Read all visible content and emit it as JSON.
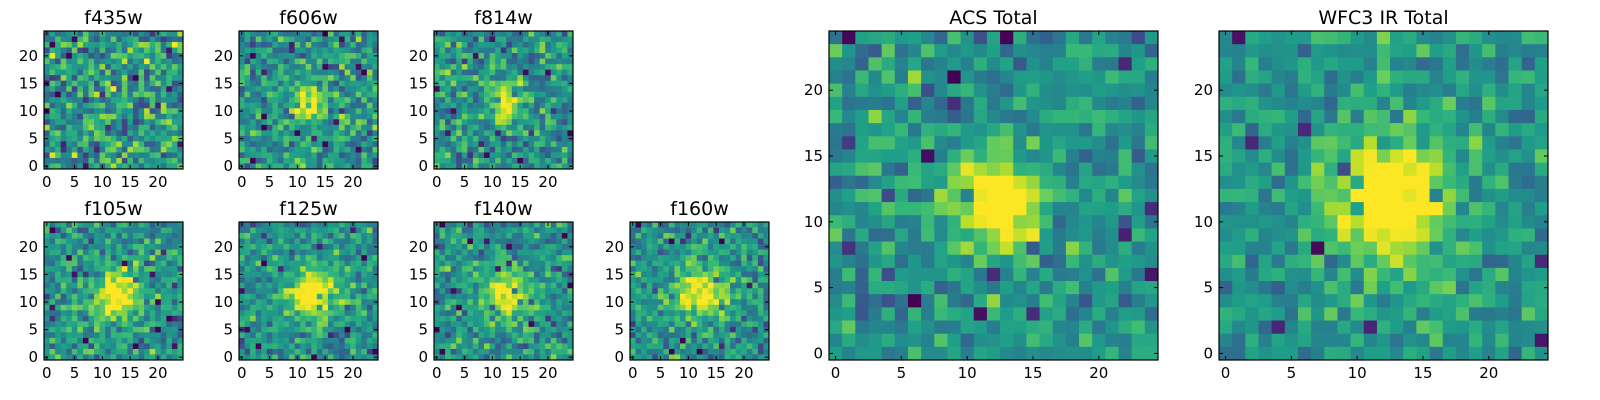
{
  "chart_data": [
    {
      "type": "heatmap",
      "title": "f435w",
      "grid_size": 25,
      "seed": 11,
      "peak": 0.05,
      "sigma": 3.0,
      "noise": 0.55,
      "xlim": [
        0,
        24
      ],
      "ylim": [
        0,
        24
      ],
      "xticks": [
        0,
        5,
        10,
        15,
        20
      ],
      "yticks": [
        0,
        5,
        10,
        15,
        20
      ],
      "colormap": "viridis",
      "grid": false
    },
    {
      "type": "heatmap",
      "title": "f606w",
      "grid_size": 25,
      "seed": 23,
      "peak": 0.55,
      "sigma": 2.2,
      "noise": 0.42,
      "xlim": [
        0,
        24
      ],
      "ylim": [
        0,
        24
      ],
      "xticks": [
        0,
        5,
        10,
        15,
        20
      ],
      "yticks": [
        0,
        5,
        10,
        15,
        20
      ],
      "colormap": "viridis",
      "grid": false
    },
    {
      "type": "heatmap",
      "title": "f814w",
      "grid_size": 25,
      "seed": 37,
      "peak": 0.5,
      "sigma": 2.2,
      "noise": 0.42,
      "xlim": [
        0,
        24
      ],
      "ylim": [
        0,
        24
      ],
      "xticks": [
        0,
        5,
        10,
        15,
        20
      ],
      "yticks": [
        0,
        5,
        10,
        15,
        20
      ],
      "colormap": "viridis",
      "grid": false
    },
    {
      "type": "heatmap",
      "title": "f105w",
      "grid_size": 25,
      "seed": 41,
      "peak": 0.55,
      "sigma": 3.0,
      "noise": 0.38,
      "xlim": [
        0,
        24
      ],
      "ylim": [
        0,
        24
      ],
      "xticks": [
        0,
        5,
        10,
        15,
        20
      ],
      "yticks": [
        0,
        5,
        10,
        15,
        20
      ],
      "colormap": "viridis",
      "grid": false
    },
    {
      "type": "heatmap",
      "title": "f125w",
      "grid_size": 25,
      "seed": 53,
      "peak": 0.6,
      "sigma": 3.0,
      "noise": 0.36,
      "xlim": [
        0,
        24
      ],
      "ylim": [
        0,
        24
      ],
      "xticks": [
        0,
        5,
        10,
        15,
        20
      ],
      "yticks": [
        0,
        5,
        10,
        15,
        20
      ],
      "colormap": "viridis",
      "grid": false
    },
    {
      "type": "heatmap",
      "title": "f140w",
      "grid_size": 25,
      "seed": 67,
      "peak": 0.5,
      "sigma": 3.2,
      "noise": 0.38,
      "xlim": [
        0,
        24
      ],
      "ylim": [
        0,
        24
      ],
      "xticks": [
        0,
        5,
        10,
        15,
        20
      ],
      "yticks": [
        0,
        5,
        10,
        15,
        20
      ],
      "colormap": "viridis",
      "grid": false
    },
    {
      "type": "heatmap",
      "title": "f160w",
      "grid_size": 25,
      "seed": 79,
      "peak": 0.55,
      "sigma": 3.0,
      "noise": 0.38,
      "xlim": [
        0,
        24
      ],
      "ylim": [
        0,
        24
      ],
      "xticks": [
        0,
        5,
        10,
        15,
        20
      ],
      "yticks": [
        0,
        5,
        10,
        15,
        20
      ],
      "colormap": "viridis",
      "grid": false
    },
    {
      "type": "heatmap",
      "title": "ACS Total",
      "grid_size": 25,
      "seed": 91,
      "peak": 0.65,
      "sigma": 2.4,
      "noise": 0.36,
      "xlim": [
        0,
        24
      ],
      "ylim": [
        0,
        24
      ],
      "xticks": [
        0,
        5,
        10,
        15,
        20
      ],
      "yticks": [
        0,
        5,
        10,
        15,
        20
      ],
      "colormap": "viridis",
      "grid": false
    },
    {
      "type": "heatmap",
      "title": "WFC3 IR Total",
      "grid_size": 25,
      "seed": 103,
      "peak": 0.7,
      "sigma": 3.2,
      "noise": 0.3,
      "xlim": [
        0,
        24
      ],
      "ylim": [
        0,
        24
      ],
      "xticks": [
        0,
        5,
        10,
        15,
        20
      ],
      "yticks": [
        0,
        5,
        10,
        15,
        20
      ],
      "colormap": "viridis",
      "grid": false
    }
  ]
}
